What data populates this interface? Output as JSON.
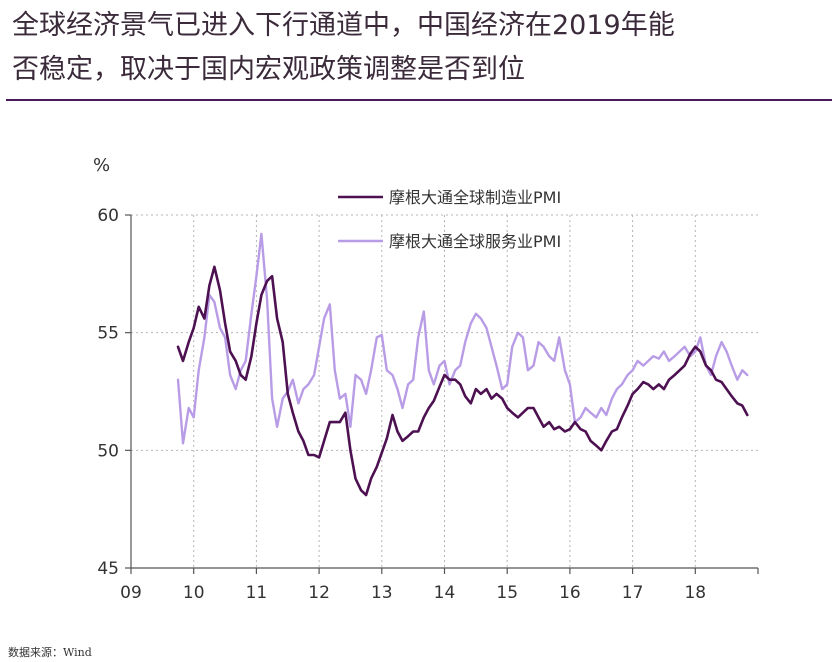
{
  "title_lines": [
    "全球经济景气已进入下行通道中，中国经济在2019年能",
    "否稳定，取决于国内宏观政策调整是否到位"
  ],
  "source": "数据来源：Wind",
  "colors": {
    "manufacturing": "#4d1152",
    "services": "#b99ce6",
    "axis": "#555555",
    "grid": "#b5b5b5",
    "rule": "#4a1a5a"
  },
  "chart_data": {
    "type": "line",
    "unit": "%",
    "ylim": [
      45,
      60
    ],
    "yticks": [
      45,
      50,
      55,
      60
    ],
    "xlim": [
      2009,
      2019
    ],
    "xticks": [
      "09",
      "10",
      "11",
      "12",
      "13",
      "14",
      "15",
      "16",
      "17",
      "18"
    ],
    "grid": true,
    "legend_position": "top-center",
    "series": [
      {
        "name": "摩根大通全球制造业PMI",
        "points": [
          [
            2009.75,
            54.4
          ],
          [
            2009.83,
            53.8
          ],
          [
            2009.92,
            54.6
          ],
          [
            2010.0,
            55.2
          ],
          [
            2010.08,
            56.1
          ],
          [
            2010.17,
            55.6
          ],
          [
            2010.25,
            57.0
          ],
          [
            2010.33,
            57.8
          ],
          [
            2010.42,
            56.8
          ],
          [
            2010.5,
            55.4
          ],
          [
            2010.58,
            54.2
          ],
          [
            2010.67,
            53.8
          ],
          [
            2010.75,
            53.2
          ],
          [
            2010.83,
            53.0
          ],
          [
            2010.92,
            54.0
          ],
          [
            2011.0,
            55.4
          ],
          [
            2011.08,
            56.6
          ],
          [
            2011.17,
            57.2
          ],
          [
            2011.25,
            57.4
          ],
          [
            2011.33,
            55.6
          ],
          [
            2011.42,
            54.6
          ],
          [
            2011.5,
            52.4
          ],
          [
            2011.58,
            51.6
          ],
          [
            2011.67,
            50.8
          ],
          [
            2011.75,
            50.4
          ],
          [
            2011.83,
            49.8
          ],
          [
            2011.92,
            49.8
          ],
          [
            2012.0,
            49.7
          ],
          [
            2012.08,
            50.4
          ],
          [
            2012.17,
            51.2
          ],
          [
            2012.25,
            51.2
          ],
          [
            2012.33,
            51.2
          ],
          [
            2012.42,
            51.6
          ],
          [
            2012.5,
            50.0
          ],
          [
            2012.58,
            48.8
          ],
          [
            2012.67,
            48.3
          ],
          [
            2012.75,
            48.1
          ],
          [
            2012.83,
            48.8
          ],
          [
            2012.92,
            49.3
          ],
          [
            2013.0,
            49.9
          ],
          [
            2013.08,
            50.5
          ],
          [
            2013.17,
            51.5
          ],
          [
            2013.25,
            50.8
          ],
          [
            2013.33,
            50.4
          ],
          [
            2013.42,
            50.6
          ],
          [
            2013.5,
            50.8
          ],
          [
            2013.58,
            50.8
          ],
          [
            2013.67,
            51.4
          ],
          [
            2013.75,
            51.8
          ],
          [
            2013.83,
            52.1
          ],
          [
            2013.92,
            52.7
          ],
          [
            2014.0,
            53.2
          ],
          [
            2014.08,
            53.0
          ],
          [
            2014.17,
            53.0
          ],
          [
            2014.25,
            52.8
          ],
          [
            2014.33,
            52.3
          ],
          [
            2014.42,
            52.0
          ],
          [
            2014.5,
            52.6
          ],
          [
            2014.58,
            52.4
          ],
          [
            2014.67,
            52.6
          ],
          [
            2014.75,
            52.2
          ],
          [
            2014.83,
            52.4
          ],
          [
            2014.92,
            52.2
          ],
          [
            2015.0,
            51.8
          ],
          [
            2015.08,
            51.6
          ],
          [
            2015.17,
            51.4
          ],
          [
            2015.25,
            51.6
          ],
          [
            2015.33,
            51.8
          ],
          [
            2015.42,
            51.8
          ],
          [
            2015.5,
            51.4
          ],
          [
            2015.58,
            51.0
          ],
          [
            2015.67,
            51.2
          ],
          [
            2015.75,
            50.9
          ],
          [
            2015.83,
            51.0
          ],
          [
            2015.92,
            50.8
          ],
          [
            2016.0,
            50.9
          ],
          [
            2016.08,
            51.2
          ],
          [
            2016.17,
            50.9
          ],
          [
            2016.25,
            50.8
          ],
          [
            2016.33,
            50.4
          ],
          [
            2016.42,
            50.2
          ],
          [
            2016.5,
            50.0
          ],
          [
            2016.58,
            50.4
          ],
          [
            2016.67,
            50.8
          ],
          [
            2016.75,
            50.9
          ],
          [
            2016.83,
            51.4
          ],
          [
            2016.92,
            51.9
          ],
          [
            2017.0,
            52.4
          ],
          [
            2017.08,
            52.6
          ],
          [
            2017.17,
            52.9
          ],
          [
            2017.25,
            52.8
          ],
          [
            2017.33,
            52.6
          ],
          [
            2017.42,
            52.8
          ],
          [
            2017.5,
            52.6
          ],
          [
            2017.58,
            53.0
          ],
          [
            2017.67,
            53.2
          ],
          [
            2017.75,
            53.4
          ],
          [
            2017.83,
            53.6
          ],
          [
            2017.92,
            54.1
          ],
          [
            2018.0,
            54.4
          ],
          [
            2018.08,
            54.2
          ],
          [
            2018.17,
            53.6
          ],
          [
            2018.25,
            53.4
          ],
          [
            2018.33,
            53.0
          ],
          [
            2018.42,
            52.9
          ],
          [
            2018.5,
            52.6
          ],
          [
            2018.58,
            52.3
          ],
          [
            2018.67,
            52.0
          ],
          [
            2018.75,
            51.9
          ],
          [
            2018.83,
            51.5
          ]
        ]
      },
      {
        "name": "摩根大通全球服务业PMI",
        "points": [
          [
            2009.75,
            53.0
          ],
          [
            2009.83,
            50.3
          ],
          [
            2009.92,
            51.8
          ],
          [
            2010.0,
            51.4
          ],
          [
            2010.08,
            53.4
          ],
          [
            2010.17,
            54.8
          ],
          [
            2010.25,
            56.6
          ],
          [
            2010.33,
            56.3
          ],
          [
            2010.42,
            55.2
          ],
          [
            2010.5,
            54.8
          ],
          [
            2010.58,
            53.2
          ],
          [
            2010.67,
            52.6
          ],
          [
            2010.75,
            53.4
          ],
          [
            2010.83,
            53.8
          ],
          [
            2010.92,
            55.8
          ],
          [
            2011.0,
            57.4
          ],
          [
            2011.08,
            59.2
          ],
          [
            2011.17,
            56.4
          ],
          [
            2011.25,
            52.2
          ],
          [
            2011.33,
            51.0
          ],
          [
            2011.42,
            52.2
          ],
          [
            2011.5,
            52.5
          ],
          [
            2011.58,
            53.0
          ],
          [
            2011.67,
            52.0
          ],
          [
            2011.75,
            52.6
          ],
          [
            2011.83,
            52.8
          ],
          [
            2011.92,
            53.2
          ],
          [
            2012.0,
            54.4
          ],
          [
            2012.08,
            55.6
          ],
          [
            2012.17,
            56.2
          ],
          [
            2012.25,
            53.4
          ],
          [
            2012.33,
            52.2
          ],
          [
            2012.42,
            52.4
          ],
          [
            2012.5,
            51.0
          ],
          [
            2012.58,
            53.2
          ],
          [
            2012.67,
            53.0
          ],
          [
            2012.75,
            52.4
          ],
          [
            2012.83,
            53.4
          ],
          [
            2012.92,
            54.8
          ],
          [
            2013.0,
            54.9
          ],
          [
            2013.08,
            53.4
          ],
          [
            2013.17,
            53.2
          ],
          [
            2013.25,
            52.6
          ],
          [
            2013.33,
            51.8
          ],
          [
            2013.42,
            52.8
          ],
          [
            2013.5,
            53.0
          ],
          [
            2013.58,
            54.8
          ],
          [
            2013.67,
            55.9
          ],
          [
            2013.75,
            53.4
          ],
          [
            2013.83,
            52.8
          ],
          [
            2013.92,
            53.6
          ],
          [
            2014.0,
            53.8
          ],
          [
            2014.08,
            52.8
          ],
          [
            2014.17,
            53.4
          ],
          [
            2014.25,
            53.6
          ],
          [
            2014.33,
            54.6
          ],
          [
            2014.42,
            55.4
          ],
          [
            2014.5,
            55.8
          ],
          [
            2014.58,
            55.6
          ],
          [
            2014.67,
            55.2
          ],
          [
            2014.75,
            54.4
          ],
          [
            2014.83,
            53.6
          ],
          [
            2014.92,
            52.6
          ],
          [
            2015.0,
            52.8
          ],
          [
            2015.08,
            54.4
          ],
          [
            2015.17,
            55.0
          ],
          [
            2015.25,
            54.8
          ],
          [
            2015.33,
            53.4
          ],
          [
            2015.42,
            53.6
          ],
          [
            2015.5,
            54.6
          ],
          [
            2015.58,
            54.4
          ],
          [
            2015.67,
            54.0
          ],
          [
            2015.75,
            53.8
          ],
          [
            2015.83,
            54.8
          ],
          [
            2015.92,
            53.4
          ],
          [
            2016.0,
            52.8
          ],
          [
            2016.08,
            51.2
          ],
          [
            2016.17,
            51.4
          ],
          [
            2016.25,
            51.8
          ],
          [
            2016.33,
            51.6
          ],
          [
            2016.42,
            51.4
          ],
          [
            2016.5,
            51.8
          ],
          [
            2016.58,
            51.5
          ],
          [
            2016.67,
            52.2
          ],
          [
            2016.75,
            52.6
          ],
          [
            2016.83,
            52.8
          ],
          [
            2016.92,
            53.2
          ],
          [
            2017.0,
            53.4
          ],
          [
            2017.08,
            53.8
          ],
          [
            2017.17,
            53.6
          ],
          [
            2017.25,
            53.8
          ],
          [
            2017.33,
            54.0
          ],
          [
            2017.42,
            53.9
          ],
          [
            2017.5,
            54.2
          ],
          [
            2017.58,
            53.8
          ],
          [
            2017.67,
            54.0
          ],
          [
            2017.75,
            54.2
          ],
          [
            2017.83,
            54.4
          ],
          [
            2017.92,
            54.0
          ],
          [
            2018.0,
            54.2
          ],
          [
            2018.08,
            54.8
          ],
          [
            2018.17,
            53.6
          ],
          [
            2018.25,
            53.2
          ],
          [
            2018.33,
            54.0
          ],
          [
            2018.42,
            54.6
          ],
          [
            2018.5,
            54.2
          ],
          [
            2018.58,
            53.6
          ],
          [
            2018.67,
            53.0
          ],
          [
            2018.75,
            53.4
          ],
          [
            2018.83,
            53.2
          ]
        ]
      }
    ]
  }
}
